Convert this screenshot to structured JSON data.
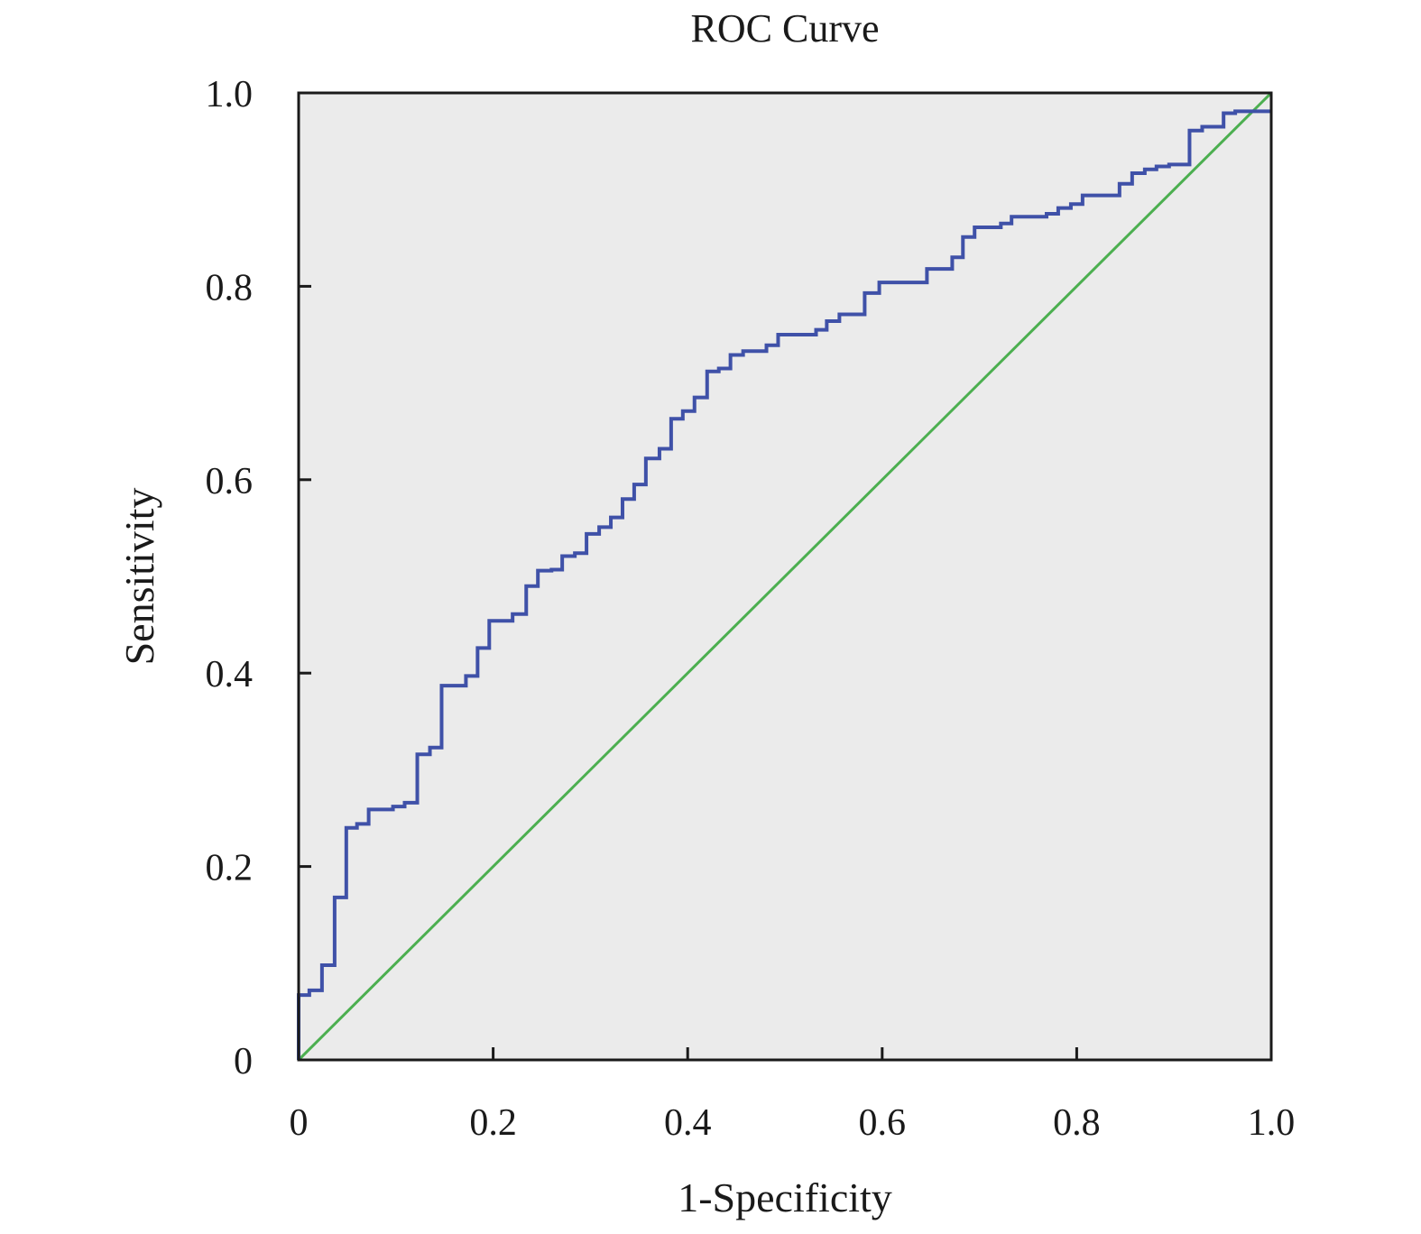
{
  "chart_data": {
    "type": "line",
    "title": "ROC Curve",
    "xlabel": "1-Specificity",
    "ylabel": "Sensitivity",
    "xlim": [
      0,
      1
    ],
    "ylim": [
      0,
      1
    ],
    "xticks": [
      0,
      0.2,
      0.4,
      0.6,
      0.8,
      1.0
    ],
    "xtick_labels": [
      "0",
      "0.2",
      "0.4",
      "0.6",
      "0.8",
      "1.0"
    ],
    "yticks": [
      0,
      0.2,
      0.4,
      0.6,
      0.8,
      1.0
    ],
    "ytick_labels": [
      "0",
      "0.2",
      "0.4",
      "0.6",
      "0.8",
      "1.0"
    ],
    "grid": false,
    "background": "#ebebeb",
    "series": [
      {
        "name": "ROC",
        "color": "#3f51a8",
        "step": true,
        "points": [
          [
            0,
            0
          ],
          [
            0,
            0.067
          ],
          [
            0.011,
            0.072
          ],
          [
            0.024,
            0.098
          ],
          [
            0.037,
            0.168
          ],
          [
            0.049,
            0.24
          ],
          [
            0.06,
            0.244
          ],
          [
            0.072,
            0.259
          ],
          [
            0.097,
            0.262
          ],
          [
            0.109,
            0.266
          ],
          [
            0.122,
            0.316
          ],
          [
            0.135,
            0.323
          ],
          [
            0.147,
            0.387
          ],
          [
            0.172,
            0.397
          ],
          [
            0.184,
            0.426
          ],
          [
            0.196,
            0.454
          ],
          [
            0.22,
            0.461
          ],
          [
            0.234,
            0.49
          ],
          [
            0.246,
            0.506
          ],
          [
            0.26,
            0.507
          ],
          [
            0.271,
            0.521
          ],
          [
            0.284,
            0.524
          ],
          [
            0.296,
            0.544
          ],
          [
            0.309,
            0.551
          ],
          [
            0.321,
            0.561
          ],
          [
            0.333,
            0.58
          ],
          [
            0.345,
            0.595
          ],
          [
            0.357,
            0.622
          ],
          [
            0.371,
            0.632
          ],
          [
            0.383,
            0.663
          ],
          [
            0.395,
            0.671
          ],
          [
            0.407,
            0.685
          ],
          [
            0.42,
            0.712
          ],
          [
            0.432,
            0.715
          ],
          [
            0.444,
            0.729
          ],
          [
            0.457,
            0.733
          ],
          [
            0.481,
            0.739
          ],
          [
            0.493,
            0.75
          ],
          [
            0.532,
            0.755
          ],
          [
            0.543,
            0.764
          ],
          [
            0.556,
            0.771
          ],
          [
            0.582,
            0.793
          ],
          [
            0.597,
            0.804
          ],
          [
            0.646,
            0.818
          ],
          [
            0.672,
            0.83
          ],
          [
            0.683,
            0.851
          ],
          [
            0.695,
            0.861
          ],
          [
            0.722,
            0.865
          ],
          [
            0.733,
            0.872
          ],
          [
            0.769,
            0.875
          ],
          [
            0.781,
            0.881
          ],
          [
            0.794,
            0.885
          ],
          [
            0.806,
            0.894
          ],
          [
            0.844,
            0.906
          ],
          [
            0.857,
            0.917
          ],
          [
            0.87,
            0.921
          ],
          [
            0.882,
            0.924
          ],
          [
            0.895,
            0.926
          ],
          [
            0.916,
            0.961
          ],
          [
            0.929,
            0.965
          ],
          [
            0.951,
            0.979
          ],
          [
            0.963,
            0.981
          ],
          [
            1.0,
            0.981
          ]
        ]
      },
      {
        "name": "Reference line",
        "color": "#4caf50",
        "step": false,
        "points": [
          [
            0,
            0
          ],
          [
            1,
            1
          ]
        ]
      }
    ]
  }
}
